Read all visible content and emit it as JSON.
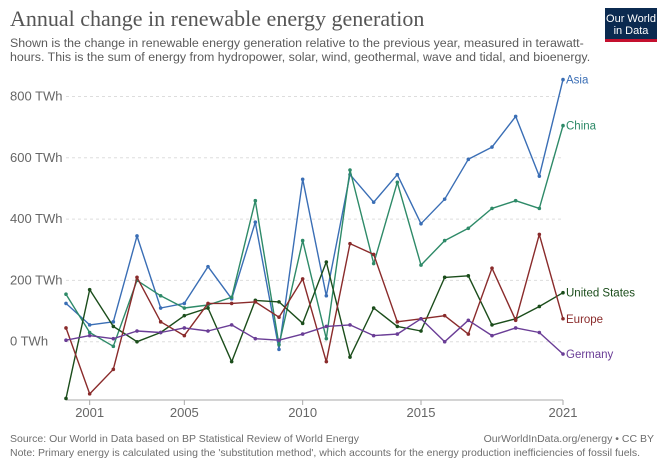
{
  "header": {
    "title": "Annual change in renewable energy generation",
    "subtitle": "Shown is the change in renewable energy generation relative to the previous year, measured in terawatt-hours. This is the sum of energy from hydropower, solar, wind, geothermal, wave and tidal, and bioenergy.",
    "logo_line1": "Our World",
    "logo_line2": "in Data",
    "logo_color": "#0b2a50",
    "logo_accent": "#c4102e"
  },
  "footer": {
    "source": "Source: Our World in Data based on BP Statistical Review of World Energy",
    "note": "Note: Primary energy is calculated using the 'substitution method', which accounts for the energy production inefficiencies of fossil fuels.",
    "link": "OurWorldInData.org/energy • CC BY"
  },
  "chart_data": {
    "type": "line",
    "title": "Annual change in renewable energy generation",
    "ylabel": "",
    "xlabel": "",
    "y_unit_suffix": " TWh",
    "ylim": [
      -190,
      870
    ],
    "y_ticks": [
      0,
      200,
      400,
      600,
      800
    ],
    "y_tick_labels": [
      "0 TWh",
      "200 TWh",
      "400 TWh",
      "600 TWh",
      "800 TWh"
    ],
    "xlim": [
      2000,
      2021
    ],
    "x_ticks": [
      2001,
      2005,
      2010,
      2015,
      2021
    ],
    "x_tick_labels": [
      "2001",
      "2005",
      "2010",
      "2015",
      "2021"
    ],
    "grid": "horizontal-dashed",
    "legend": "right-end-labels",
    "x": [
      2000,
      2001,
      2002,
      2003,
      2004,
      2005,
      2006,
      2007,
      2008,
      2009,
      2010,
      2011,
      2012,
      2013,
      2014,
      2015,
      2016,
      2017,
      2018,
      2019,
      2020,
      2021
    ],
    "series": [
      {
        "name": "Asia",
        "color": "#3a6eb5",
        "values": [
          125,
          55,
          65,
          345,
          110,
          125,
          245,
          140,
          390,
          -25,
          530,
          150,
          545,
          455,
          545,
          385,
          465,
          595,
          635,
          735,
          540,
          855
        ]
      },
      {
        "name": "China",
        "color": "#2e8a68",
        "values": [
          155,
          30,
          -15,
          200,
          150,
          110,
          120,
          145,
          460,
          -10,
          330,
          10,
          560,
          255,
          520,
          250,
          330,
          370,
          435,
          460,
          435,
          705
        ]
      },
      {
        "name": "United States",
        "color": "#1b4d1b",
        "values": [
          -185,
          170,
          50,
          0,
          30,
          85,
          110,
          -65,
          135,
          130,
          60,
          260,
          -50,
          110,
          50,
          35,
          210,
          215,
          55,
          75,
          115,
          160
        ]
      },
      {
        "name": "Europe",
        "color": "#8a2b2b",
        "values": [
          45,
          -170,
          -90,
          210,
          65,
          20,
          125,
          125,
          130,
          80,
          205,
          -65,
          320,
          285,
          65,
          75,
          85,
          25,
          240,
          70,
          350,
          75
        ]
      },
      {
        "name": "Germany",
        "color": "#6a3d96",
        "values": [
          5,
          20,
          10,
          35,
          30,
          45,
          35,
          55,
          10,
          5,
          25,
          50,
          55,
          20,
          25,
          75,
          0,
          70,
          20,
          45,
          30,
          -40
        ]
      }
    ]
  }
}
